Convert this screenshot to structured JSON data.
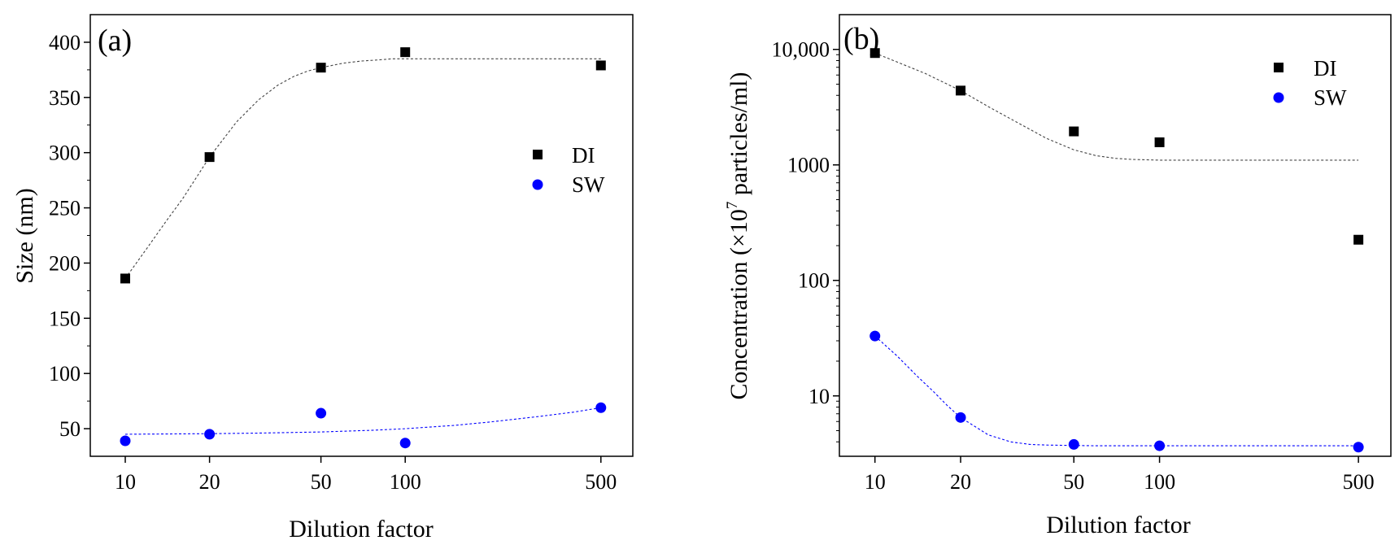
{
  "chart_data": [
    {
      "type": "scatter",
      "panel_label": "(a)",
      "xlabel": "Dilution factor",
      "ylabel": "Size (nm)",
      "x_scale": "log",
      "y_scale": "linear",
      "xlim": [
        7.5,
        650
      ],
      "ylim": [
        25,
        425
      ],
      "x_ticks": [
        10,
        20,
        50,
        100,
        500
      ],
      "x_tick_labels": [
        "10",
        "20",
        "50",
        "100",
        "500"
      ],
      "y_ticks": [
        50,
        100,
        150,
        200,
        250,
        300,
        350,
        400
      ],
      "y_tick_labels": [
        "50",
        "100",
        "150",
        "200",
        "250",
        "300",
        "350",
        "400"
      ],
      "legend_position": "right-middle",
      "series": [
        {
          "name": "DI",
          "marker": "square",
          "color": "#000000",
          "x": [
            10,
            20,
            50,
            100,
            500
          ],
          "y": [
            186,
            296,
            377,
            391,
            379
          ],
          "fit": {
            "x": [
              10,
              12,
              14,
              16,
              18,
              20,
              25,
              30,
              35,
              40,
              45,
              50,
              60,
              70,
              80,
              90,
              100,
              150,
              200,
              300,
              400,
              500
            ],
            "y": [
              186,
              214,
              238,
              258,
              278,
              296,
              328,
              348,
              361,
              369,
              374,
              377,
              381,
              383,
              384,
              385,
              385,
              385,
              385,
              385,
              385,
              385
            ]
          }
        },
        {
          "name": "SW",
          "marker": "circle",
          "color": "#0000ff",
          "x": [
            10,
            20,
            50,
            100,
            500
          ],
          "y": [
            39,
            45,
            64,
            37,
            69
          ],
          "fit": {
            "x": [
              10,
              20,
              30,
              50,
              75,
              100,
              150,
              200,
              300,
              400,
              500
            ],
            "y": [
              45,
              45.5,
              46,
              47,
              48.5,
              50,
              53,
              56,
              61,
              65,
              69
            ]
          }
        }
      ]
    },
    {
      "type": "scatter",
      "panel_label": "(b)",
      "xlabel": "Dilution factor",
      "ylabel": "Concentration (×10",
      "ylabel_sup": "7",
      "ylabel_tail": " particles/ml)",
      "x_scale": "log",
      "y_scale": "log",
      "xlim": [
        7.5,
        650
      ],
      "ylim": [
        3,
        20000
      ],
      "x_ticks": [
        10,
        20,
        50,
        100,
        500
      ],
      "x_tick_labels": [
        "10",
        "20",
        "50",
        "100",
        "500"
      ],
      "y_ticks": [
        10,
        100,
        1000,
        10000
      ],
      "y_tick_labels": [
        "10",
        "100",
        "1000",
        "10,000"
      ],
      "legend_position": "top-right",
      "series": [
        {
          "name": "DI",
          "marker": "square",
          "color": "#000000",
          "x": [
            10,
            20,
            50,
            100,
            500
          ],
          "y": [
            9300,
            4400,
            1950,
            1570,
            225
          ],
          "fit": {
            "x": [
              10,
              15,
              20,
              25,
              30,
              40,
              50,
              60,
              70,
              80,
              100,
              150,
              200,
              300,
              500
            ],
            "y": [
              9300,
              6200,
              4400,
              3200,
              2500,
              1700,
              1350,
              1200,
              1140,
              1115,
              1100,
              1100,
              1100,
              1100,
              1100
            ]
          }
        },
        {
          "name": "SW",
          "marker": "circle",
          "color": "#0000ff",
          "x": [
            10,
            20,
            50,
            100,
            500
          ],
          "y": [
            33,
            6.5,
            3.8,
            3.7,
            3.6
          ],
          "fit": {
            "x": [
              10,
              12,
              14,
              16,
              18,
              20,
              25,
              30,
              35,
              40,
              50,
              60,
              100,
              200,
              500
            ],
            "y": [
              33,
              22,
              15,
              11,
              8.2,
              6.5,
              4.6,
              4.0,
              3.8,
              3.75,
              3.72,
              3.7,
              3.7,
              3.7,
              3.7
            ]
          }
        }
      ]
    }
  ]
}
